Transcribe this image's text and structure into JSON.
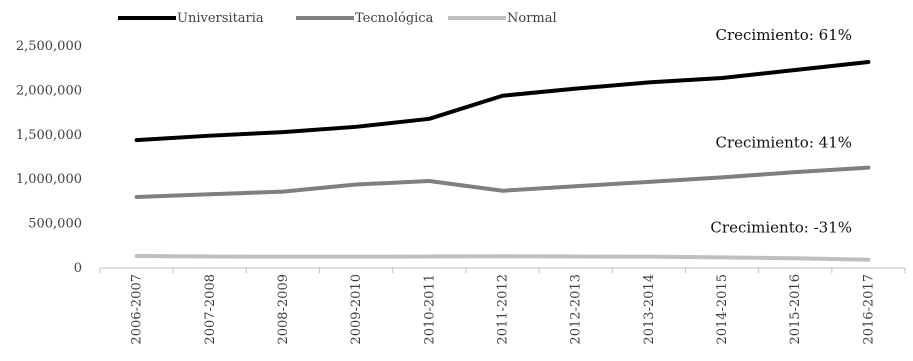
{
  "chart_data": {
    "type": "line",
    "categories": [
      "2006-2007",
      "2007-2008",
      "2008-2009",
      "2009-2010",
      "2010-2011",
      "2011-2012",
      "2012-2013",
      "2013-2014",
      "2014-2015",
      "2015-2016",
      "2016-2017"
    ],
    "series": [
      {
        "name": "Universitaria",
        "color": "#000000",
        "values": [
          1440000,
          1490000,
          1530000,
          1590000,
          1680000,
          1940000,
          2020000,
          2090000,
          2140000,
          2230000,
          2320000
        ]
      },
      {
        "name": "Tecnológica",
        "color": "#7f7f7f",
        "values": [
          800000,
          830000,
          860000,
          940000,
          980000,
          870000,
          920000,
          970000,
          1020000,
          1080000,
          1130000
        ]
      },
      {
        "name": "Normal",
        "color": "#bfbfbf",
        "values": [
          135000,
          130000,
          128000,
          128000,
          130000,
          132000,
          130000,
          128000,
          120000,
          110000,
          93000
        ]
      }
    ],
    "yticks": [
      "0",
      "500,000",
      "1,000,000",
      "1,500,000",
      "2,000,000",
      "2,500,000"
    ],
    "ylim": [
      0,
      2500000
    ],
    "grid": false,
    "legend": "top-left",
    "annotations": [
      {
        "text": "Crecimiento: 61%",
        "series": 0
      },
      {
        "text": "Crecimiento: 41%",
        "series": 1
      },
      {
        "text": "Crecimiento: -31%",
        "series": 2
      }
    ]
  }
}
